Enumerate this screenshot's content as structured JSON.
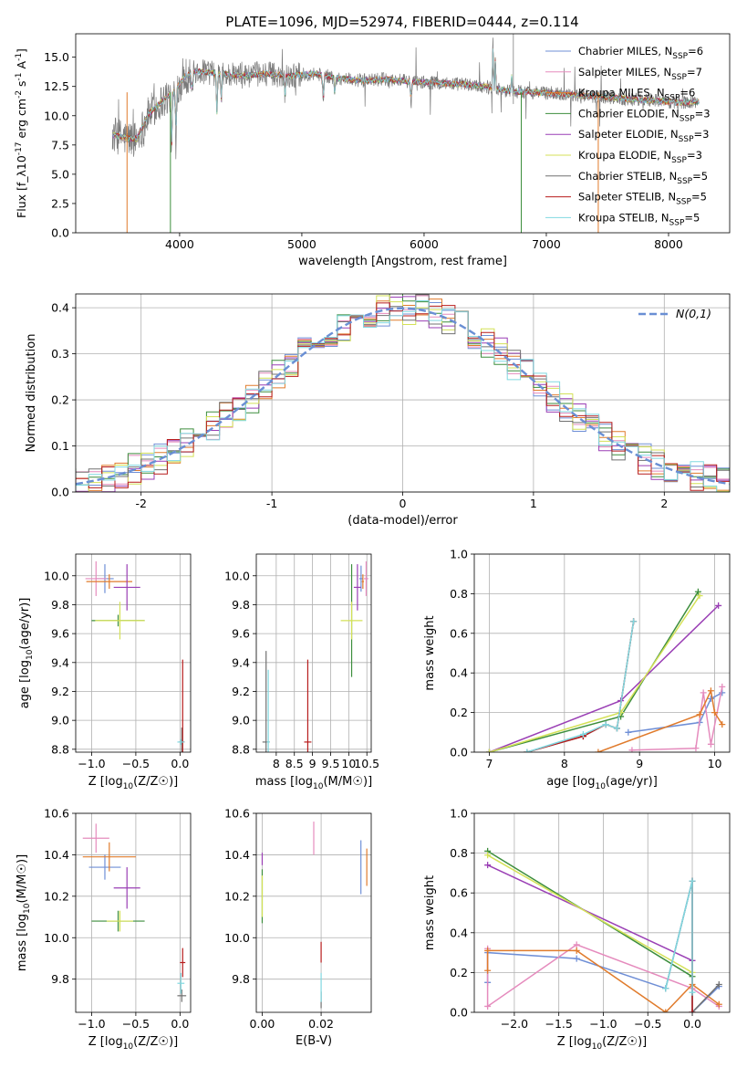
{
  "figure_title": "PLATE=1096, MJD=52974, FIBERID=0444, z=0.114",
  "colors": {
    "Chabrier MILES": "#6f8fd6",
    "Salpeter MILES": "#e58bbd",
    "Kroupa MILES": "#e07b2c",
    "Chabrier ELODIE": "#3d8e3d",
    "Salpeter ELODIE": "#9a3fb5",
    "Kroupa ELODIE": "#d4e157",
    "Chabrier STELIB": "#707070",
    "Salpeter STELIB": "#b71c1c",
    "Kroupa STELIB": "#80d8e0",
    "gaussian": "#6a8fd4"
  },
  "chart_data": [
    {
      "id": "spectrum",
      "type": "line",
      "xlabel": "wavelength [Angstrom, rest frame]",
      "ylabel": "Flux [f_λ 10^-17 erg cm^-2 s^-1 A^-1]",
      "xlim": [
        3150,
        8500
      ],
      "ylim": [
        0,
        17
      ],
      "xticks": [
        4000,
        5000,
        6000,
        7000,
        8000
      ],
      "yticks": [
        0.0,
        2.5,
        5.0,
        7.5,
        10.0,
        12.5,
        15.0
      ],
      "legend_position": "top-right",
      "legend": [
        {
          "model": "Chabrier MILES",
          "label": "Chabrier MILES, N_SSP=6"
        },
        {
          "model": "Salpeter MILES",
          "label": "Salpeter MILES, N_SSP=7"
        },
        {
          "model": "Kroupa MILES",
          "label": "Kroupa MILES, N_SSP=6"
        },
        {
          "model": "Chabrier ELODIE",
          "label": "Chabrier ELODIE, N_SSP=3"
        },
        {
          "model": "Salpeter ELODIE",
          "label": "Salpeter ELODIE, N_SSP=3"
        },
        {
          "model": "Kroupa ELODIE",
          "label": "Kroupa ELODIE, N_SSP=3"
        },
        {
          "model": "Chabrier STELIB",
          "label": "Chabrier STELIB, N_SSP=5"
        },
        {
          "model": "Salpeter STELIB",
          "label": "Salpeter STELIB, N_SSP=5"
        },
        {
          "model": "Kroupa STELIB",
          "label": "Kroupa STELIB, N_SSP=5"
        }
      ],
      "continuum_x": [
        3450,
        3550,
        3650,
        3750,
        3850,
        3950,
        4050,
        4150,
        4300,
        4500,
        4700,
        4900,
        5100,
        5300,
        5500,
        5700,
        5900,
        6100,
        6300,
        6500,
        6700,
        6900,
        7100,
        7300,
        7500,
        7700,
        7900,
        8100,
        8250
      ],
      "continuum_y": [
        8.4,
        8.1,
        8.0,
        10.2,
        11.2,
        12.0,
        13.4,
        13.8,
        13.6,
        13.4,
        13.6,
        13.4,
        13.6,
        13.2,
        13.0,
        13.1,
        12.9,
        12.8,
        12.7,
        12.5,
        12.1,
        12.0,
        11.9,
        11.7,
        11.6,
        11.4,
        11.3,
        11.1,
        11.2
      ],
      "absorption_lines": [
        {
          "x": 3934,
          "depth": 5.5
        },
        {
          "x": 3969,
          "depth": 4.5
        },
        {
          "x": 4102,
          "depth": 2.0
        },
        {
          "x": 4304,
          "depth": 4.0
        },
        {
          "x": 4341,
          "depth": 2.5
        },
        {
          "x": 4861,
          "depth": 2.0
        },
        {
          "x": 5175,
          "depth": 2.5
        },
        {
          "x": 5270,
          "depth": 1.5
        },
        {
          "x": 5893,
          "depth": 2.0
        }
      ],
      "emission_lines": [
        {
          "x": 6563,
          "height": 4.5
        },
        {
          "x": 6583,
          "height": 3.0
        },
        {
          "x": 6717,
          "height": 1.5
        }
      ]
    },
    {
      "id": "residuals",
      "type": "line",
      "xlabel": "(data-model)/error",
      "ylabel": "Normed distribution",
      "xlim": [
        -2.5,
        2.5
      ],
      "ylim": [
        0,
        0.43
      ],
      "xticks": [
        -2,
        -1,
        0,
        1,
        2
      ],
      "yticks": [
        0.0,
        0.1,
        0.2,
        0.3,
        0.4
      ],
      "legend_position": "top-right",
      "gaussian_label": "N(0,1)",
      "bin_width": 0.1
    },
    {
      "id": "age-vs-Z",
      "type": "scatter",
      "xlabel": "Z [log10(Z/Z☉)]",
      "ylabel": "age  [log10(age/yr)]",
      "xlim": [
        -1.18,
        0.12
      ],
      "ylim": [
        8.78,
        10.15
      ],
      "xticks": [
        -1.0,
        -0.5,
        0.0
      ],
      "xticklabels": [
        "−1.0",
        "−0.5",
        "0.0"
      ],
      "yticks": [
        8.8,
        9.0,
        9.2,
        9.4,
        9.6,
        9.8,
        10.0
      ],
      "points": [
        {
          "model": "Chabrier MILES",
          "x": -0.85,
          "y": 9.98,
          "dx": 0.1,
          "dy": 0.1
        },
        {
          "model": "Salpeter MILES",
          "x": -0.95,
          "y": 9.98,
          "dx": 0.12,
          "dy": 0.12
        },
        {
          "model": "Kroupa MILES",
          "x": -0.8,
          "y": 9.96,
          "dx": 0.26,
          "dy": 0.05
        },
        {
          "model": "Chabrier ELODIE",
          "x": -0.7,
          "y": 9.69,
          "dx": 0.3,
          "dy": 0.04
        },
        {
          "model": "Salpeter ELODIE",
          "x": -0.6,
          "y": 9.92,
          "dx": 0.15,
          "dy": 0.16
        },
        {
          "model": "Kroupa ELODIE",
          "x": -0.68,
          "y": 9.69,
          "dx": 0.28,
          "dy": 0.13
        },
        {
          "model": "Chabrier STELIB",
          "x": 0.02,
          "y": 8.85,
          "dx": 0.03,
          "dy": 0.1
        },
        {
          "model": "Salpeter STELIB",
          "x": 0.03,
          "y": 8.85,
          "dx": 0.02,
          "dy": 0.57
        },
        {
          "model": "Kroupa STELIB",
          "x": 0.01,
          "y": 8.85,
          "dx": 0.04,
          "dy": 0.02
        }
      ]
    },
    {
      "id": "age-vs-mass",
      "type": "scatter",
      "xlabel": "mass [log10(M/M☉)]",
      "ylabel": "",
      "xlim": [
        7.45,
        10.62
      ],
      "ylim": [
        8.78,
        10.15
      ],
      "xticks": [
        8.0,
        8.5,
        9.0,
        9.5,
        10.0,
        10.5
      ],
      "yticks": [
        8.8,
        9.0,
        9.2,
        9.4,
        9.6,
        9.8,
        10.0
      ],
      "points": [
        {
          "model": "Chabrier MILES",
          "x": 10.34,
          "y": 9.98,
          "dx": 0.05,
          "dy": 0.09
        },
        {
          "model": "Salpeter MILES",
          "x": 10.48,
          "y": 9.98,
          "dx": 0.06,
          "dy": 0.12
        },
        {
          "model": "Kroupa MILES",
          "x": 10.39,
          "y": 9.96,
          "dx": 0.03,
          "dy": 0.05
        },
        {
          "model": "Chabrier ELODIE",
          "x": 10.08,
          "y": 9.69,
          "dx": 0.0,
          "dy": 0.39
        },
        {
          "model": "Salpeter ELODIE",
          "x": 10.24,
          "y": 9.92,
          "dx": 0.1,
          "dy": 0.16
        },
        {
          "model": "Kroupa ELODIE",
          "x": 10.08,
          "y": 9.69,
          "dx": 0.3,
          "dy": 0.13
        },
        {
          "model": "Chabrier STELIB",
          "x": 7.72,
          "y": 8.85,
          "dx": 0.1,
          "dy": 0.63
        },
        {
          "model": "Salpeter STELIB",
          "x": 8.87,
          "y": 8.85,
          "dx": 0.1,
          "dy": 0.57
        },
        {
          "model": "Kroupa STELIB",
          "x": 7.78,
          "y": 8.85,
          "dx": 0.04,
          "dy": 0.5
        }
      ]
    },
    {
      "id": "weight-vs-age",
      "type": "line",
      "xlabel": "age  [log10(age/yr)]",
      "ylabel": "mass weight",
      "xlim": [
        6.8,
        10.2
      ],
      "ylim": [
        0,
        1.0
      ],
      "xticks": [
        7,
        8,
        9,
        10
      ],
      "yticks": [
        0.0,
        0.2,
        0.4,
        0.6,
        0.8,
        1.0
      ],
      "series": [
        {
          "model": "Chabrier MILES",
          "x": [
            8.85,
            9.8,
            9.95,
            10.1
          ],
          "y": [
            0.1,
            0.15,
            0.27,
            0.3
          ]
        },
        {
          "model": "Salpeter MILES",
          "x": [
            8.9,
            9.75,
            9.85,
            9.95,
            10.1
          ],
          "y": [
            0.01,
            0.02,
            0.3,
            0.04,
            0.33
          ]
        },
        {
          "model": "Kroupa MILES",
          "x": [
            8.45,
            9.8,
            9.95,
            10.0,
            10.1
          ],
          "y": [
            0.0,
            0.19,
            0.31,
            0.2,
            0.14
          ]
        },
        {
          "model": "Chabrier ELODIE",
          "x": [
            7.0,
            8.75,
            9.78
          ],
          "y": [
            0.0,
            0.18,
            0.81
          ]
        },
        {
          "model": "Salpeter ELODIE",
          "x": [
            7.0,
            8.75,
            10.05
          ],
          "y": [
            0.0,
            0.26,
            0.74
          ]
        },
        {
          "model": "Kroupa ELODIE",
          "x": [
            7.0,
            8.75,
            9.8
          ],
          "y": [
            0.0,
            0.2,
            0.79
          ]
        },
        {
          "model": "Chabrier STELIB",
          "x": [
            7.5,
            8.25,
            8.55,
            8.7,
            8.92
          ],
          "y": [
            0.0,
            0.08,
            0.14,
            0.12,
            0.66
          ]
        },
        {
          "model": "Salpeter STELIB",
          "x": [
            7.5,
            8.25,
            8.55,
            8.7,
            8.92
          ],
          "y": [
            0.0,
            0.08,
            0.14,
            0.12,
            0.66
          ]
        },
        {
          "model": "Kroupa STELIB",
          "x": [
            7.5,
            8.25,
            8.55,
            8.7,
            8.92
          ],
          "y": [
            0.0,
            0.09,
            0.14,
            0.12,
            0.66
          ]
        }
      ]
    },
    {
      "id": "mass-vs-Z",
      "type": "scatter",
      "xlabel": "Z [log10(Z/Z☉)]",
      "ylabel": "mass [log10(M/M☉)]",
      "xlim": [
        -1.18,
        0.12
      ],
      "ylim": [
        9.64,
        10.6
      ],
      "xticks": [
        -1.0,
        -0.5,
        0.0
      ],
      "xticklabels": [
        "−1.0",
        "−0.5",
        "0.0"
      ],
      "yticks": [
        9.8,
        10.0,
        10.2,
        10.4,
        10.6
      ],
      "points": [
        {
          "model": "Chabrier MILES",
          "x": -0.85,
          "y": 10.34,
          "dx": 0.18,
          "dy": 0.06
        },
        {
          "model": "Salpeter MILES",
          "x": -0.95,
          "y": 10.48,
          "dx": 0.15,
          "dy": 0.07
        },
        {
          "model": "Kroupa MILES",
          "x": -0.8,
          "y": 10.39,
          "dx": 0.3,
          "dy": 0.07
        },
        {
          "model": "Chabrier ELODIE",
          "x": -0.7,
          "y": 10.08,
          "dx": 0.3,
          "dy": 0.05
        },
        {
          "model": "Salpeter ELODIE",
          "x": -0.6,
          "y": 10.24,
          "dx": 0.15,
          "dy": 0.1
        },
        {
          "model": "Kroupa ELODIE",
          "x": -0.68,
          "y": 10.08,
          "dx": 0.15,
          "dy": 0.05
        },
        {
          "model": "Chabrier STELIB",
          "x": 0.02,
          "y": 9.72,
          "dx": 0.05,
          "dy": 0.03
        },
        {
          "model": "Salpeter STELIB",
          "x": 0.03,
          "y": 9.88,
          "dx": 0.03,
          "dy": 0.07
        },
        {
          "model": "Kroupa STELIB",
          "x": 0.01,
          "y": 9.78,
          "dx": 0.04,
          "dy": 0.05
        }
      ]
    },
    {
      "id": "mass-vs-ebv",
      "type": "scatter",
      "xlabel": "E(B-V)",
      "ylabel": "",
      "xlim": [
        -0.002,
        0.037
      ],
      "ylim": [
        9.64,
        10.6
      ],
      "xticks": [
        0.0,
        0.02
      ],
      "xticklabels": [
        "0.00",
        "0.02"
      ],
      "yticks": [
        9.8,
        10.0,
        10.2,
        10.4,
        10.6
      ],
      "points": [
        {
          "model": "Chabrier MILES",
          "x": 0.0335,
          "y": 10.34,
          "dx": 0,
          "dy": 0.13
        },
        {
          "model": "Salpeter MILES",
          "x": 0.0175,
          "y": 10.48,
          "dx": 0,
          "dy": 0.08
        },
        {
          "model": "Kroupa MILES",
          "x": 0.0355,
          "y": 10.34,
          "dx": 0,
          "dy": 0.09
        },
        {
          "model": "Chabrier ELODIE",
          "x": 0.0,
          "y": 10.2,
          "dx": 0,
          "dy": 0.13
        },
        {
          "model": "Salpeter ELODIE",
          "x": 0.0,
          "y": 10.38,
          "dx": 0,
          "dy": 0.03
        },
        {
          "model": "Kroupa ELODIE",
          "x": 0.0,
          "y": 10.2,
          "dx": 0,
          "dy": 0.1
        },
        {
          "model": "Chabrier STELIB",
          "x": 0.02,
          "y": 9.7,
          "dx": 0,
          "dy": 0.04
        },
        {
          "model": "Salpeter STELIB",
          "x": 0.02,
          "y": 9.93,
          "dx": 0,
          "dy": 0.05
        },
        {
          "model": "Kroupa STELIB",
          "x": 0.02,
          "y": 9.76,
          "dx": 0,
          "dy": 0.07
        }
      ]
    },
    {
      "id": "weight-vs-Z",
      "type": "line",
      "xlabel": "Z [log10(Z/Z☉)]",
      "ylabel": "mass weight",
      "xlim": [
        -2.45,
        0.42
      ],
      "ylim": [
        0,
        1.0
      ],
      "xticks": [
        -2.0,
        -1.5,
        -1.0,
        -0.5,
        0.0
      ],
      "xticklabels": [
        "−2.0",
        "−1.5",
        "−1.0",
        "−0.5",
        "0.0"
      ],
      "yticks": [
        0.0,
        0.2,
        0.4,
        0.6,
        0.8,
        1.0
      ],
      "series": [
        {
          "model": "Chabrier MILES",
          "x": [
            -2.3,
            -2.3,
            -1.3,
            -0.3,
            0.0,
            0.0,
            0.3
          ],
          "y": [
            0.15,
            0.3,
            0.27,
            0.12,
            0.66,
            0.0,
            0.13
          ]
        },
        {
          "model": "Salpeter MILES",
          "x": [
            -2.3,
            -2.3,
            -1.3,
            0.0,
            0.3
          ],
          "y": [
            0.32,
            0.03,
            0.34,
            0.12,
            0.03
          ]
        },
        {
          "model": "Kroupa MILES",
          "x": [
            -2.3,
            -2.3,
            -1.3,
            -0.3,
            0.0,
            0.3
          ],
          "y": [
            0.21,
            0.31,
            0.31,
            0.0,
            0.14,
            0.04
          ]
        },
        {
          "model": "Chabrier ELODIE",
          "x": [
            -2.3,
            0.0
          ],
          "y": [
            0.81,
            0.18
          ]
        },
        {
          "model": "Salpeter ELODIE",
          "x": [
            -2.3,
            0.0
          ],
          "y": [
            0.74,
            0.26
          ]
        },
        {
          "model": "Kroupa ELODIE",
          "x": [
            -2.3,
            0.0
          ],
          "y": [
            0.79,
            0.2
          ]
        },
        {
          "model": "Chabrier STELIB",
          "x": [
            -0.3,
            0.0,
            0.0,
            0.3
          ],
          "y": [
            0.12,
            0.66,
            0.0,
            0.14
          ]
        },
        {
          "model": "Salpeter STELIB",
          "x": [
            0.0,
            0.0
          ],
          "y": [
            0.0,
            0.66
          ]
        },
        {
          "model": "Kroupa STELIB",
          "x": [
            -0.3,
            0.0,
            0.0
          ],
          "y": [
            0.12,
            0.66,
            0.1
          ]
        }
      ]
    }
  ]
}
